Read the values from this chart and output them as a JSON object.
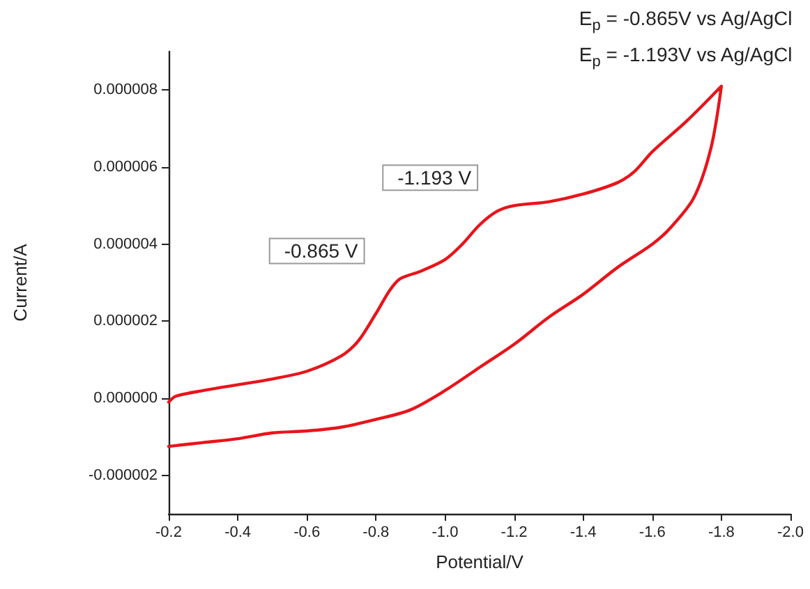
{
  "chart_data": {
    "type": "line",
    "xlabel": "Potential/V",
    "ylabel": "Current/A",
    "xlim": [
      -0.2,
      -2.0
    ],
    "xticks": [
      {
        "value": -0.2,
        "label": "-0.2"
      },
      {
        "value": -0.4,
        "label": "-0.4"
      },
      {
        "value": -0.6,
        "label": "-0.6"
      },
      {
        "value": -0.8,
        "label": "-0.8"
      },
      {
        "value": -1.0,
        "label": "-1.0"
      },
      {
        "value": -1.2,
        "label": "-1.2"
      },
      {
        "value": -1.4,
        "label": "-1.4"
      },
      {
        "value": -1.6,
        "label": "-1.6"
      },
      {
        "value": -1.8,
        "label": "-1.8"
      },
      {
        "value": -2.0,
        "label": "-2.0"
      }
    ],
    "ylim": [
      -3e-06,
      9e-06
    ],
    "yticks": [
      {
        "value": -2e-06,
        "label": "-0.000002"
      },
      {
        "value": 0,
        "label": "0.000000"
      },
      {
        "value": 2e-06,
        "label": "0.000002"
      },
      {
        "value": 4e-06,
        "label": "0.000004"
      },
      {
        "value": 6e-06,
        "label": "0.000006"
      },
      {
        "value": 8e-06,
        "label": "0.000008"
      }
    ],
    "grid": false,
    "marker": "none",
    "line_style": "solid",
    "series": [
      {
        "color": "#e8141b",
        "x": [
          -0.2,
          -0.22,
          -0.3,
          -0.4,
          -0.5,
          -0.6,
          -0.7,
          -0.75,
          -0.8,
          -0.84,
          -0.87,
          -0.93,
          -1.0,
          -1.05,
          -1.1,
          -1.15,
          -1.2,
          -1.3,
          -1.4,
          -1.5,
          -1.55,
          -1.6,
          -1.7,
          -1.8,
          -1.77,
          -1.72,
          -1.65,
          -1.6,
          -1.5,
          -1.4,
          -1.3,
          -1.2,
          -1.1,
          -1.0,
          -0.9,
          -0.8,
          -0.7,
          -0.6,
          -0.5,
          -0.4,
          -0.3,
          -0.2
        ],
        "values": [
          -1e-07,
          5e-08,
          2e-07,
          3.5e-07,
          5e-07,
          7e-07,
          1.1e-06,
          1.5e-06,
          2.2e-06,
          2.8e-06,
          3.1e-06,
          3.3e-06,
          3.6e-06,
          4e-06,
          4.5e-06,
          4.85e-06,
          5e-06,
          5.1e-06,
          5.3e-06,
          5.6e-06,
          5.9e-06,
          6.4e-06,
          7.2e-06,
          8.1e-06,
          6.5e-06,
          5.2e-06,
          4.4e-06,
          4e-06,
          3.4e-06,
          2.7e-06,
          2.1e-06,
          1.4e-06,
          8e-07,
          2e-07,
          -3e-07,
          -5.5e-07,
          -7.5e-07,
          -8.5e-07,
          -9e-07,
          -1.05e-06,
          -1.15e-06,
          -1.25e-06
        ]
      }
    ],
    "annotations": [
      "E$_{p}$ = -0.865V vs Ag/AgCl",
      "E$_{p}$ = -1.193V vs Ag/AgCl",
      {
        "text": "-0.865 V",
        "x": -0.865,
        "y": 3.1e-06
      },
      {
        "text": "-1.193 V",
        "x": -1.193,
        "y": 5e-06
      }
    ]
  }
}
